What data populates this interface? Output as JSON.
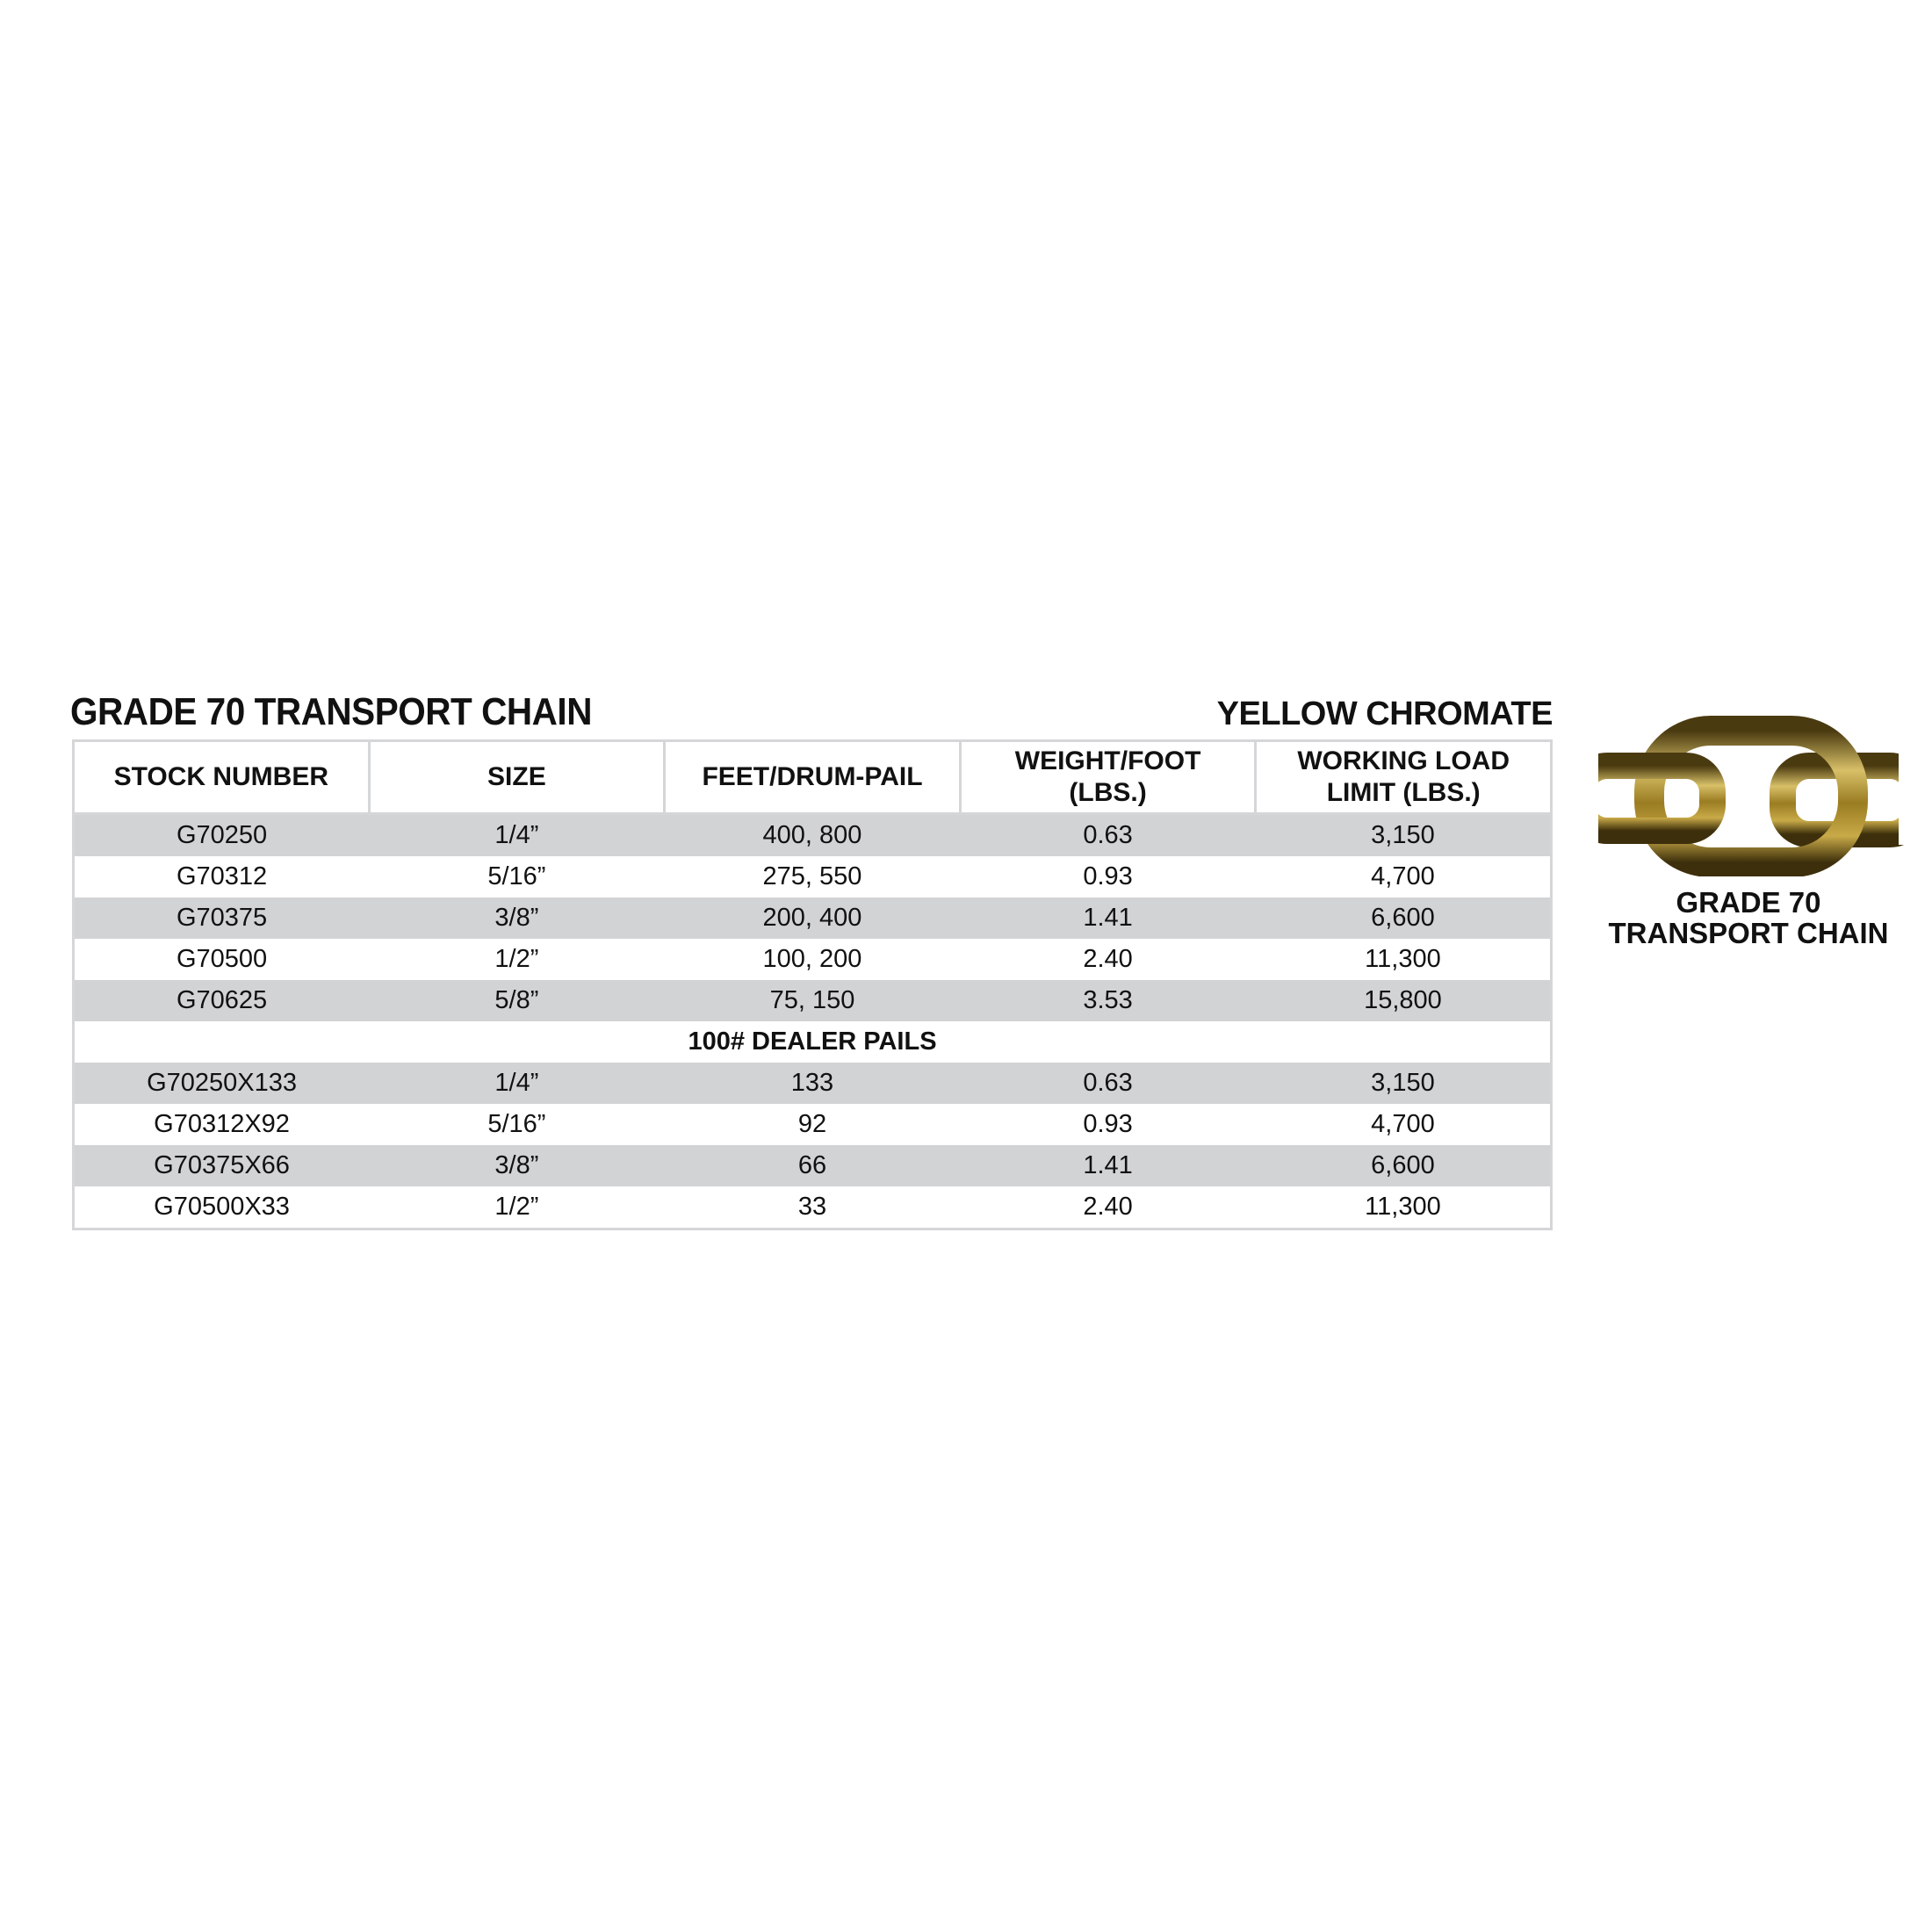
{
  "title": "GRADE 70 TRANSPORT CHAIN",
  "finish": "YELLOW CHROMATE",
  "table": {
    "headers": [
      "STOCK NUMBER",
      "SIZE",
      "FEET/DRUM-PAIL",
      "WEIGHT/FOOT (LBS.)",
      "WORKING LOAD LIMIT (LBS.)"
    ],
    "rows": [
      [
        "G70250",
        "1/4”",
        "400,  800",
        "0.63",
        "3,150"
      ],
      [
        "G70312",
        "5/16”",
        "275,  550",
        "0.93",
        "4,700"
      ],
      [
        "G70375",
        "3/8”",
        "200,  400",
        "1.41",
        "6,600"
      ],
      [
        "G70500",
        "1/2”",
        "100,  200",
        "2.40",
        "11,300"
      ],
      [
        "G70625",
        "5/8”",
        "75, 150",
        "3.53",
        "15,800"
      ]
    ],
    "section_label": "100# DEALER PAILS",
    "section_rows": [
      [
        "G70250X133",
        "1/4”",
        "133",
        "0.63",
        "3,150"
      ],
      [
        "G70312X92",
        "5/16”",
        "92",
        "0.93",
        "4,700"
      ],
      [
        "G70375X66",
        "3/8”",
        "66",
        "1.41",
        "6,600"
      ],
      [
        "G70500X33",
        "1/2”",
        "33",
        "2.40",
        "11,300"
      ]
    ]
  },
  "product_image": {
    "icon": "chain-links-photo",
    "color": "#b8982e"
  },
  "caption": {
    "line1": "GRADE 70",
    "line2": "TRANSPORT CHAIN"
  },
  "colors": {
    "row_shade": "#d2d3d5",
    "border": "#d5d6d8"
  }
}
